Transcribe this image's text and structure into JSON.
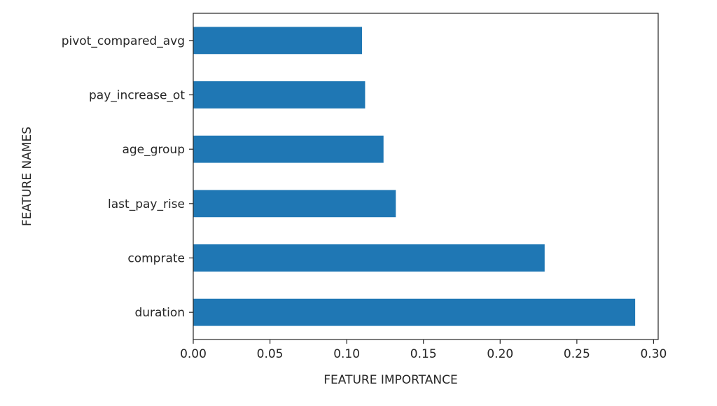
{
  "chart_data": {
    "type": "bar",
    "orientation": "horizontal",
    "title": "",
    "xlabel": "FEATURE IMPORTANCE",
    "ylabel": "FEATURE NAMES",
    "categories": [
      "duration",
      "comprate",
      "last_pay_rise",
      "age_group",
      "pay_increase_ot",
      "pivot_compared_avg"
    ],
    "values": [
      0.288,
      0.229,
      0.132,
      0.124,
      0.112,
      0.11
    ],
    "xlim": [
      0.0,
      0.303
    ],
    "xticks": [
      0.0,
      0.05,
      0.1,
      0.15,
      0.2,
      0.25,
      0.3
    ],
    "xtick_labels": [
      "0.00",
      "0.05",
      "0.10",
      "0.15",
      "0.20",
      "0.25",
      "0.30"
    ],
    "grid": false,
    "legend": "none",
    "bar_color": "#1f77b4",
    "axis_color": "#262626"
  }
}
